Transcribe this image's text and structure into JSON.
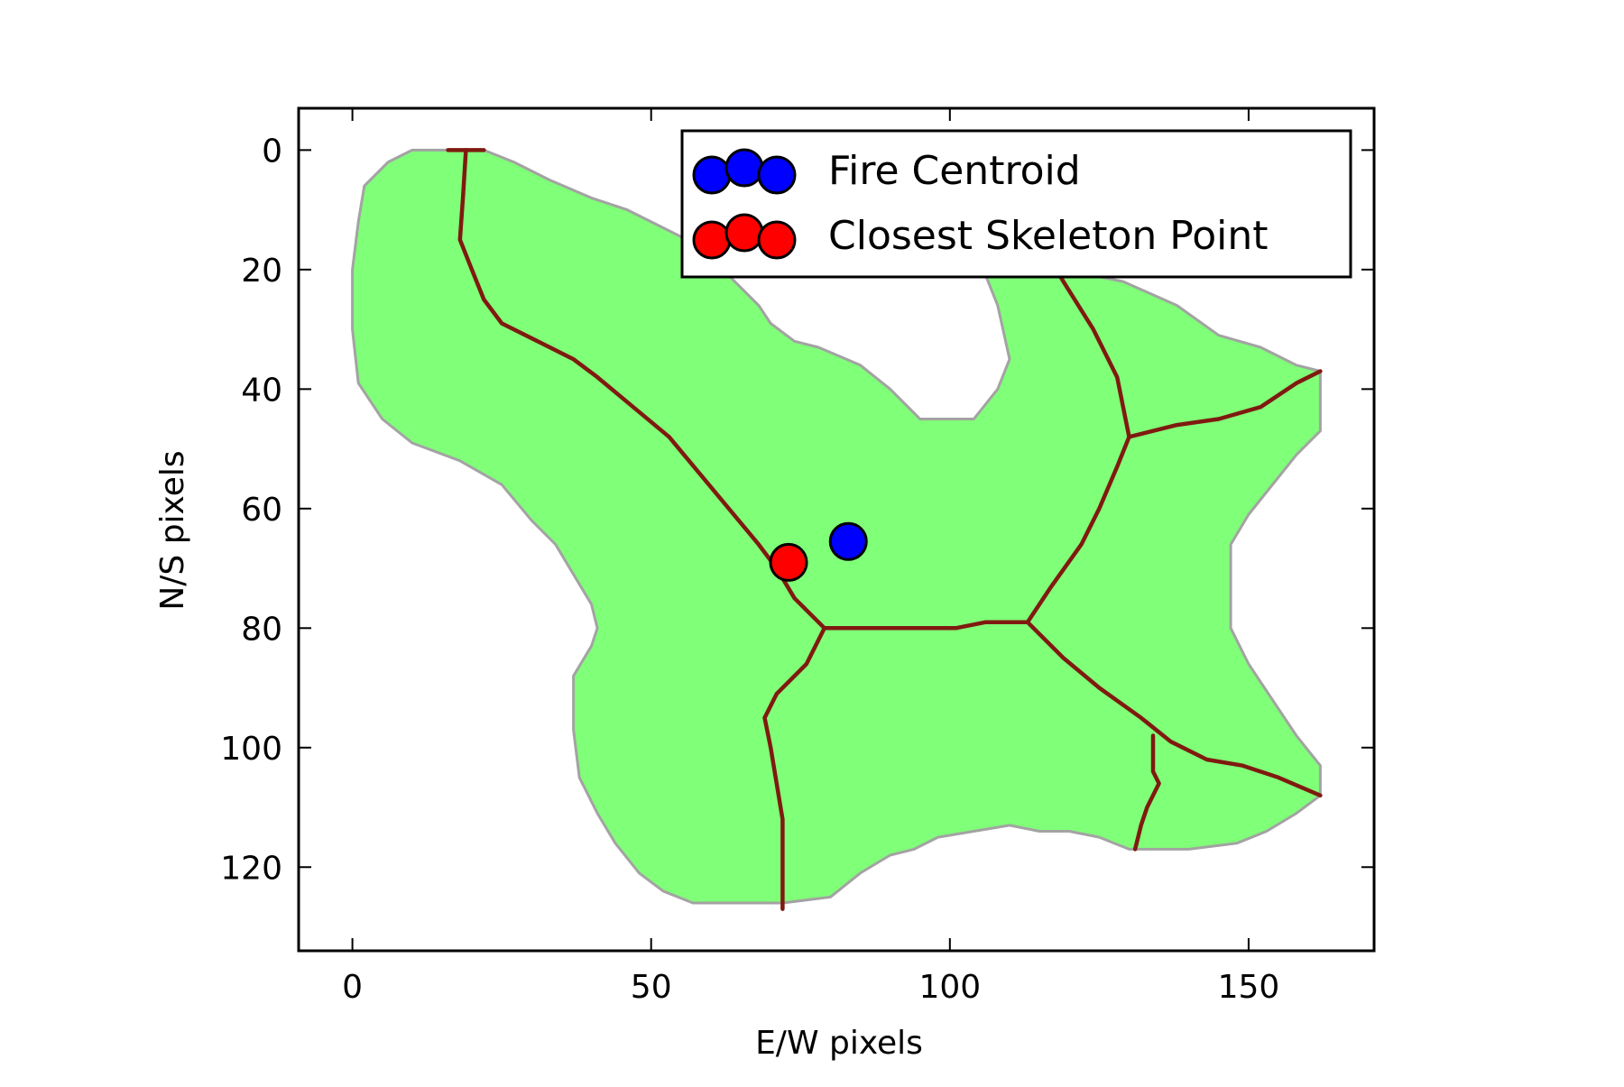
{
  "chart_data": {
    "type": "scatter",
    "title": "",
    "xlabel": "E/W pixels",
    "ylabel": "N/S pixels",
    "xlim": [
      -9,
      171
    ],
    "ylim": [
      134,
      -7
    ],
    "y_inverted": true,
    "xticks": [
      0,
      50,
      100,
      150
    ],
    "yticks": [
      0,
      20,
      40,
      60,
      80,
      100,
      120
    ],
    "grid": false,
    "legend_position": "top-right",
    "background_image": {
      "description_colors": {
        "fire_area": "#80ff78",
        "fire_edge": "#a3a3a3",
        "skeleton": "#7f1a10"
      },
      "fire_outline": [
        [
          16,
          0
        ],
        [
          22,
          0
        ],
        [
          27,
          2
        ],
        [
          33,
          5
        ],
        [
          40,
          8
        ],
        [
          46,
          10
        ],
        [
          52,
          13
        ],
        [
          58,
          16
        ],
        [
          62,
          20
        ],
        [
          65,
          23
        ],
        [
          68,
          26
        ],
        [
          70,
          29
        ],
        [
          74,
          32
        ],
        [
          78,
          33
        ],
        [
          85,
          36
        ],
        [
          90,
          40
        ],
        [
          95,
          45
        ],
        [
          104,
          45
        ],
        [
          108,
          40
        ],
        [
          110,
          35
        ],
        [
          108,
          26
        ],
        [
          106,
          21
        ],
        [
          110,
          20
        ],
        [
          118,
          20
        ],
        [
          124,
          21
        ],
        [
          129,
          22
        ],
        [
          138,
          26
        ],
        [
          145,
          31
        ],
        [
          152,
          33
        ],
        [
          158,
          36
        ],
        [
          162,
          37
        ],
        [
          162,
          47
        ],
        [
          158,
          51
        ],
        [
          154,
          56
        ],
        [
          150,
          61
        ],
        [
          147,
          66
        ],
        [
          147,
          72
        ],
        [
          147,
          80
        ],
        [
          150,
          86
        ],
        [
          154,
          92
        ],
        [
          158,
          98
        ],
        [
          162,
          103
        ],
        [
          162,
          108
        ],
        [
          158,
          111
        ],
        [
          153,
          114
        ],
        [
          148,
          116
        ],
        [
          140,
          117
        ],
        [
          130,
          117
        ],
        [
          125,
          115
        ],
        [
          120,
          114
        ],
        [
          115,
          114
        ],
        [
          110,
          113
        ],
        [
          104,
          114
        ],
        [
          98,
          115
        ],
        [
          94,
          117
        ],
        [
          90,
          118
        ],
        [
          85,
          121
        ],
        [
          80,
          125
        ],
        [
          72,
          126
        ],
        [
          65,
          126
        ],
        [
          57,
          126
        ],
        [
          52,
          124
        ],
        [
          48,
          121
        ],
        [
          44,
          116
        ],
        [
          41,
          111
        ],
        [
          38,
          105
        ],
        [
          37,
          97
        ],
        [
          37,
          88
        ],
        [
          40,
          83
        ],
        [
          41,
          80
        ],
        [
          40,
          76
        ],
        [
          37,
          71
        ],
        [
          34,
          66
        ],
        [
          30,
          62
        ],
        [
          25,
          56
        ],
        [
          18,
          52
        ],
        [
          10,
          49
        ],
        [
          5,
          45
        ],
        [
          1,
          39
        ],
        [
          0,
          30
        ],
        [
          0,
          20
        ],
        [
          1,
          12
        ],
        [
          2,
          6
        ],
        [
          6,
          2
        ],
        [
          10,
          0
        ]
      ],
      "skeleton_paths": [
        [
          [
            16,
            0
          ],
          [
            22,
            0
          ]
        ],
        [
          [
            19,
            0
          ],
          [
            18.5,
            8
          ],
          [
            18,
            15
          ],
          [
            20,
            20
          ],
          [
            22,
            25
          ],
          [
            25,
            29
          ],
          [
            31,
            32
          ],
          [
            37,
            35
          ],
          [
            41,
            38
          ],
          [
            47,
            43
          ],
          [
            53,
            48
          ],
          [
            58,
            54
          ],
          [
            63,
            60
          ],
          [
            68,
            66
          ],
          [
            71,
            70
          ],
          [
            74,
            75
          ],
          [
            79,
            80
          ]
        ],
        [
          [
            79,
            80
          ],
          [
            76,
            86
          ],
          [
            71,
            91
          ],
          [
            69,
            95
          ],
          [
            70,
            100
          ],
          [
            71,
            106
          ],
          [
            72,
            112
          ],
          [
            72,
            120
          ],
          [
            72,
            127
          ]
        ],
        [
          [
            79,
            80
          ],
          [
            86,
            80
          ],
          [
            95,
            80
          ],
          [
            101,
            80
          ],
          [
            106,
            79
          ],
          [
            113,
            79
          ]
        ],
        [
          [
            113,
            79
          ],
          [
            117,
            73
          ],
          [
            122,
            66
          ],
          [
            125,
            60
          ],
          [
            128,
            53
          ],
          [
            130,
            48
          ]
        ],
        [
          [
            130,
            48
          ],
          [
            128,
            38
          ],
          [
            124,
            30
          ],
          [
            119,
            22
          ],
          [
            116,
            17
          ]
        ],
        [
          [
            130,
            48
          ],
          [
            138,
            46
          ],
          [
            145,
            45
          ],
          [
            152,
            43
          ],
          [
            158,
            39
          ],
          [
            162,
            37
          ]
        ],
        [
          [
            113,
            79
          ],
          [
            119,
            85
          ],
          [
            125,
            90
          ],
          [
            132,
            95
          ],
          [
            137,
            99
          ],
          [
            143,
            102
          ],
          [
            149,
            103
          ],
          [
            155,
            105
          ],
          [
            162,
            108
          ]
        ],
        [
          [
            134,
            98
          ],
          [
            134,
            104
          ],
          [
            135,
            106
          ],
          [
            133,
            110
          ],
          [
            132,
            113
          ],
          [
            131,
            117
          ]
        ]
      ]
    },
    "series": [
      {
        "name": "Fire Centroid",
        "color": "#0000ff",
        "points": [
          [
            83,
            65.5
          ]
        ]
      },
      {
        "name": "Closest Skeleton Point",
        "color": "#ff0000",
        "points": [
          [
            73,
            69
          ]
        ]
      }
    ]
  }
}
